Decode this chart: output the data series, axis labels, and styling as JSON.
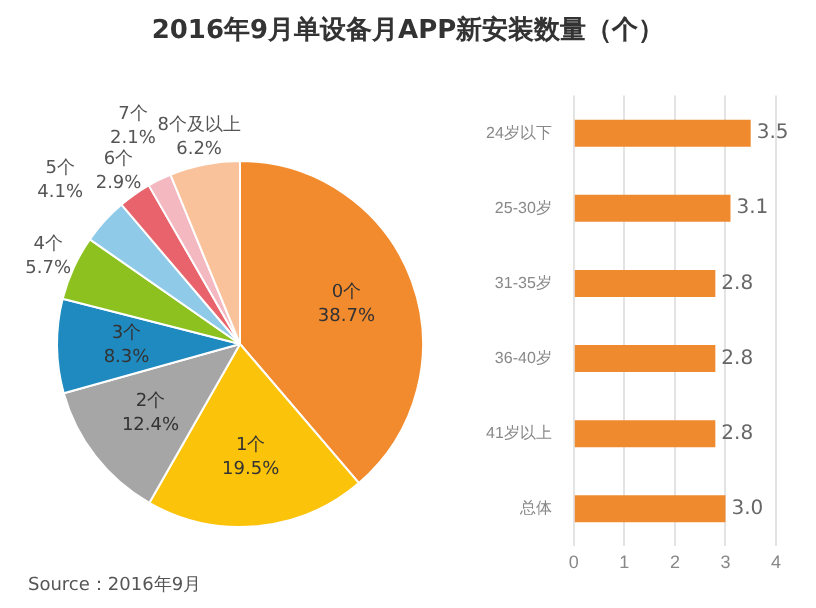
{
  "chart_data": [
    {
      "type": "pie",
      "title": "2016年9月单设备月APP新安装数量（个）",
      "categories": [
        "0个",
        "1个",
        "2个",
        "3个",
        "4个",
        "5个",
        "6个",
        "7个",
        "8个及以上"
      ],
      "values": [
        38.7,
        19.5,
        12.4,
        8.3,
        5.7,
        4.1,
        2.9,
        2.1,
        6.2
      ],
      "colors": [
        "#f28a2e",
        "#fcc30b",
        "#a6a6a6",
        "#1f8ac0",
        "#8cc11f",
        "#8fcbe8",
        "#e8636b",
        "#f4b8c0",
        "#f9c29a"
      ],
      "value_labels": [
        "38.7%",
        "19.5%",
        "12.4%",
        "8.3%",
        "5.7%",
        "4.1%",
        "2.9%",
        "2.1%",
        "6.2%"
      ],
      "legend": false,
      "annotations": [
        "Source：2016年9月"
      ]
    },
    {
      "type": "bar",
      "orientation": "horizontal",
      "categories": [
        "24岁以下",
        "25-30岁",
        "31-35岁",
        "36-40岁",
        "41岁以上",
        "总体"
      ],
      "values": [
        3.5,
        3.1,
        2.8,
        2.8,
        2.8,
        3.0
      ],
      "value_labels": [
        "3.5",
        "3.1",
        "2.8",
        "2.8",
        "2.8",
        "3.0"
      ],
      "color": "#f08a2e",
      "xlim": [
        0,
        4
      ],
      "xticks": [
        0,
        1,
        2,
        3,
        4
      ],
      "grid": "x",
      "legend": false
    }
  ]
}
